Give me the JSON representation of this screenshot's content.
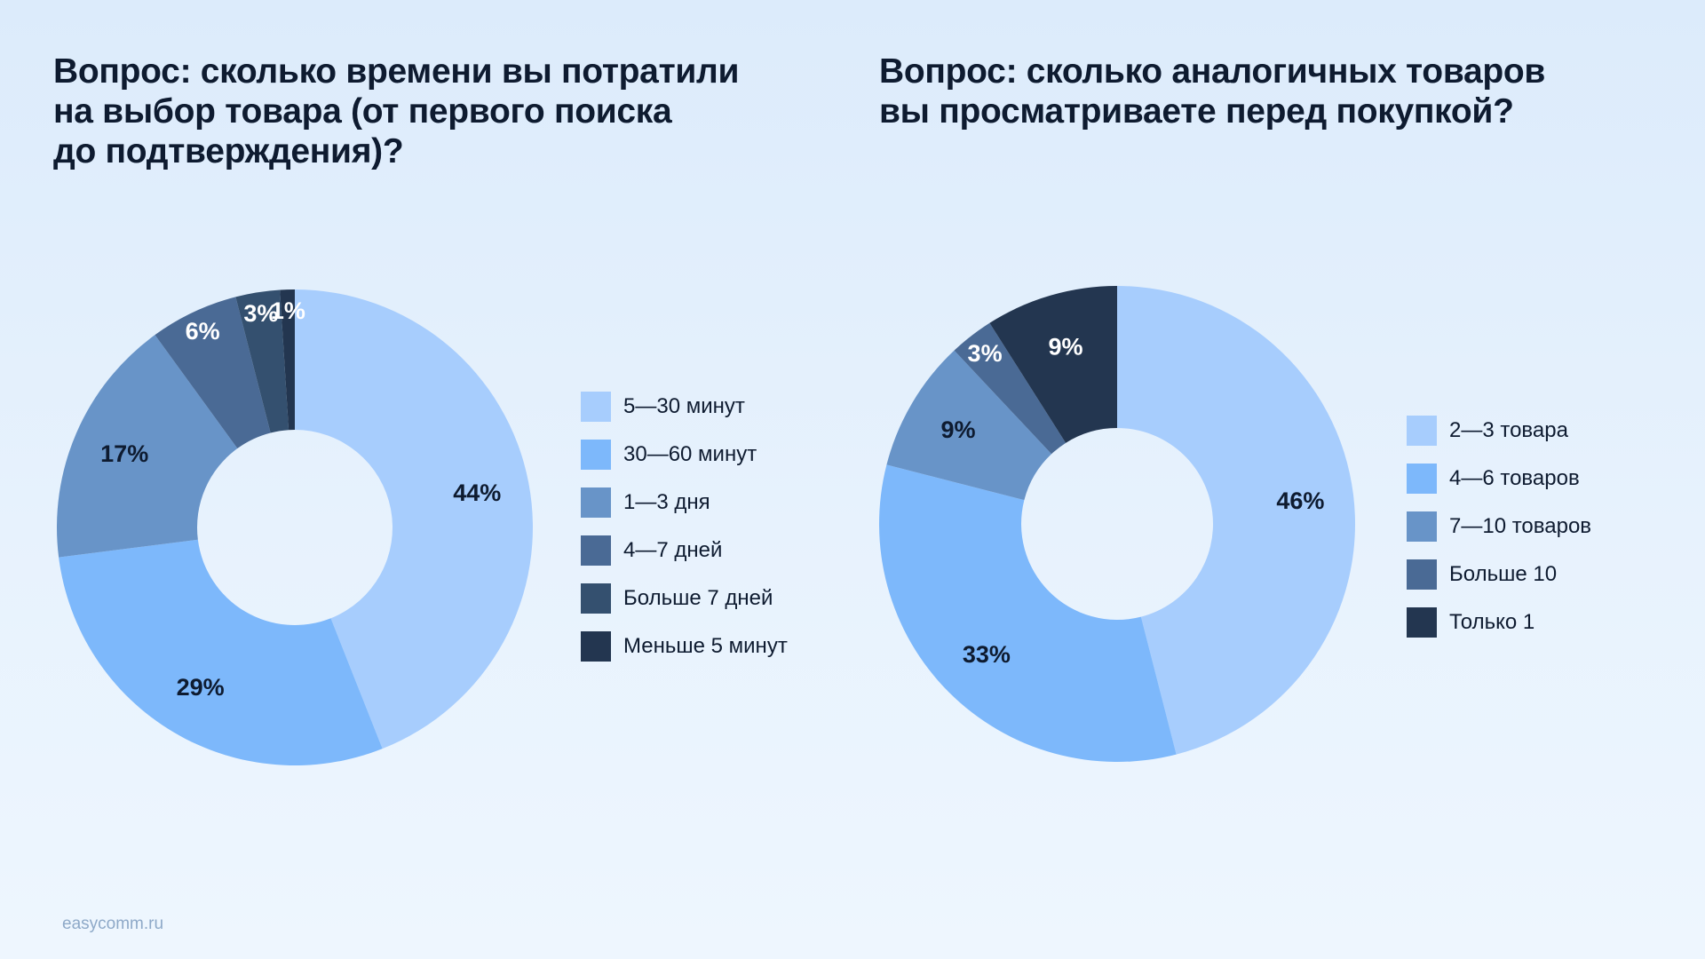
{
  "footer": {
    "site": "easycomm.ru"
  },
  "chart_data": [
    {
      "type": "pie",
      "title": "Вопрос: сколько времени вы потратили\nна выбор товара (от первого поиска\nдо подтверждения)?",
      "categories": [
        "5—30 минут",
        "30—60 минут",
        "1—3 дня",
        "4—7 дней",
        "Больше 7 дней",
        "Меньше 5 минут"
      ],
      "values": [
        44,
        29,
        17,
        6,
        3,
        1
      ],
      "labels": [
        "44%",
        "29%",
        "17%",
        "6%",
        "3%",
        "1%"
      ],
      "colors": [
        "#a7cdfd",
        "#7db8fb",
        "#6894c8",
        "#4a6a95",
        "#34506f",
        "#233650"
      ],
      "label_colors": [
        "#0e1b30",
        "#0e1b30",
        "#0e1b30",
        "#ffffff",
        "#ffffff",
        "#ffffff"
      ],
      "legend_position": "right"
    },
    {
      "type": "pie",
      "title": "Вопрос: сколько аналогичных товаров\nвы просматриваете перед покупкой?",
      "categories": [
        "2—3 товара",
        "4—6 товаров",
        "7—10 товаров",
        "Больше 10",
        "Только 1"
      ],
      "values": [
        46,
        33,
        9,
        3,
        9
      ],
      "labels": [
        "46%",
        "33%",
        "9%",
        "3%",
        "9%"
      ],
      "colors": [
        "#a7cdfd",
        "#7db8fb",
        "#6894c8",
        "#4a6a95",
        "#233650"
      ],
      "label_colors": [
        "#0e1b30",
        "#0e1b30",
        "#0e1b30",
        "#ffffff",
        "#ffffff"
      ],
      "legend_position": "right"
    }
  ]
}
